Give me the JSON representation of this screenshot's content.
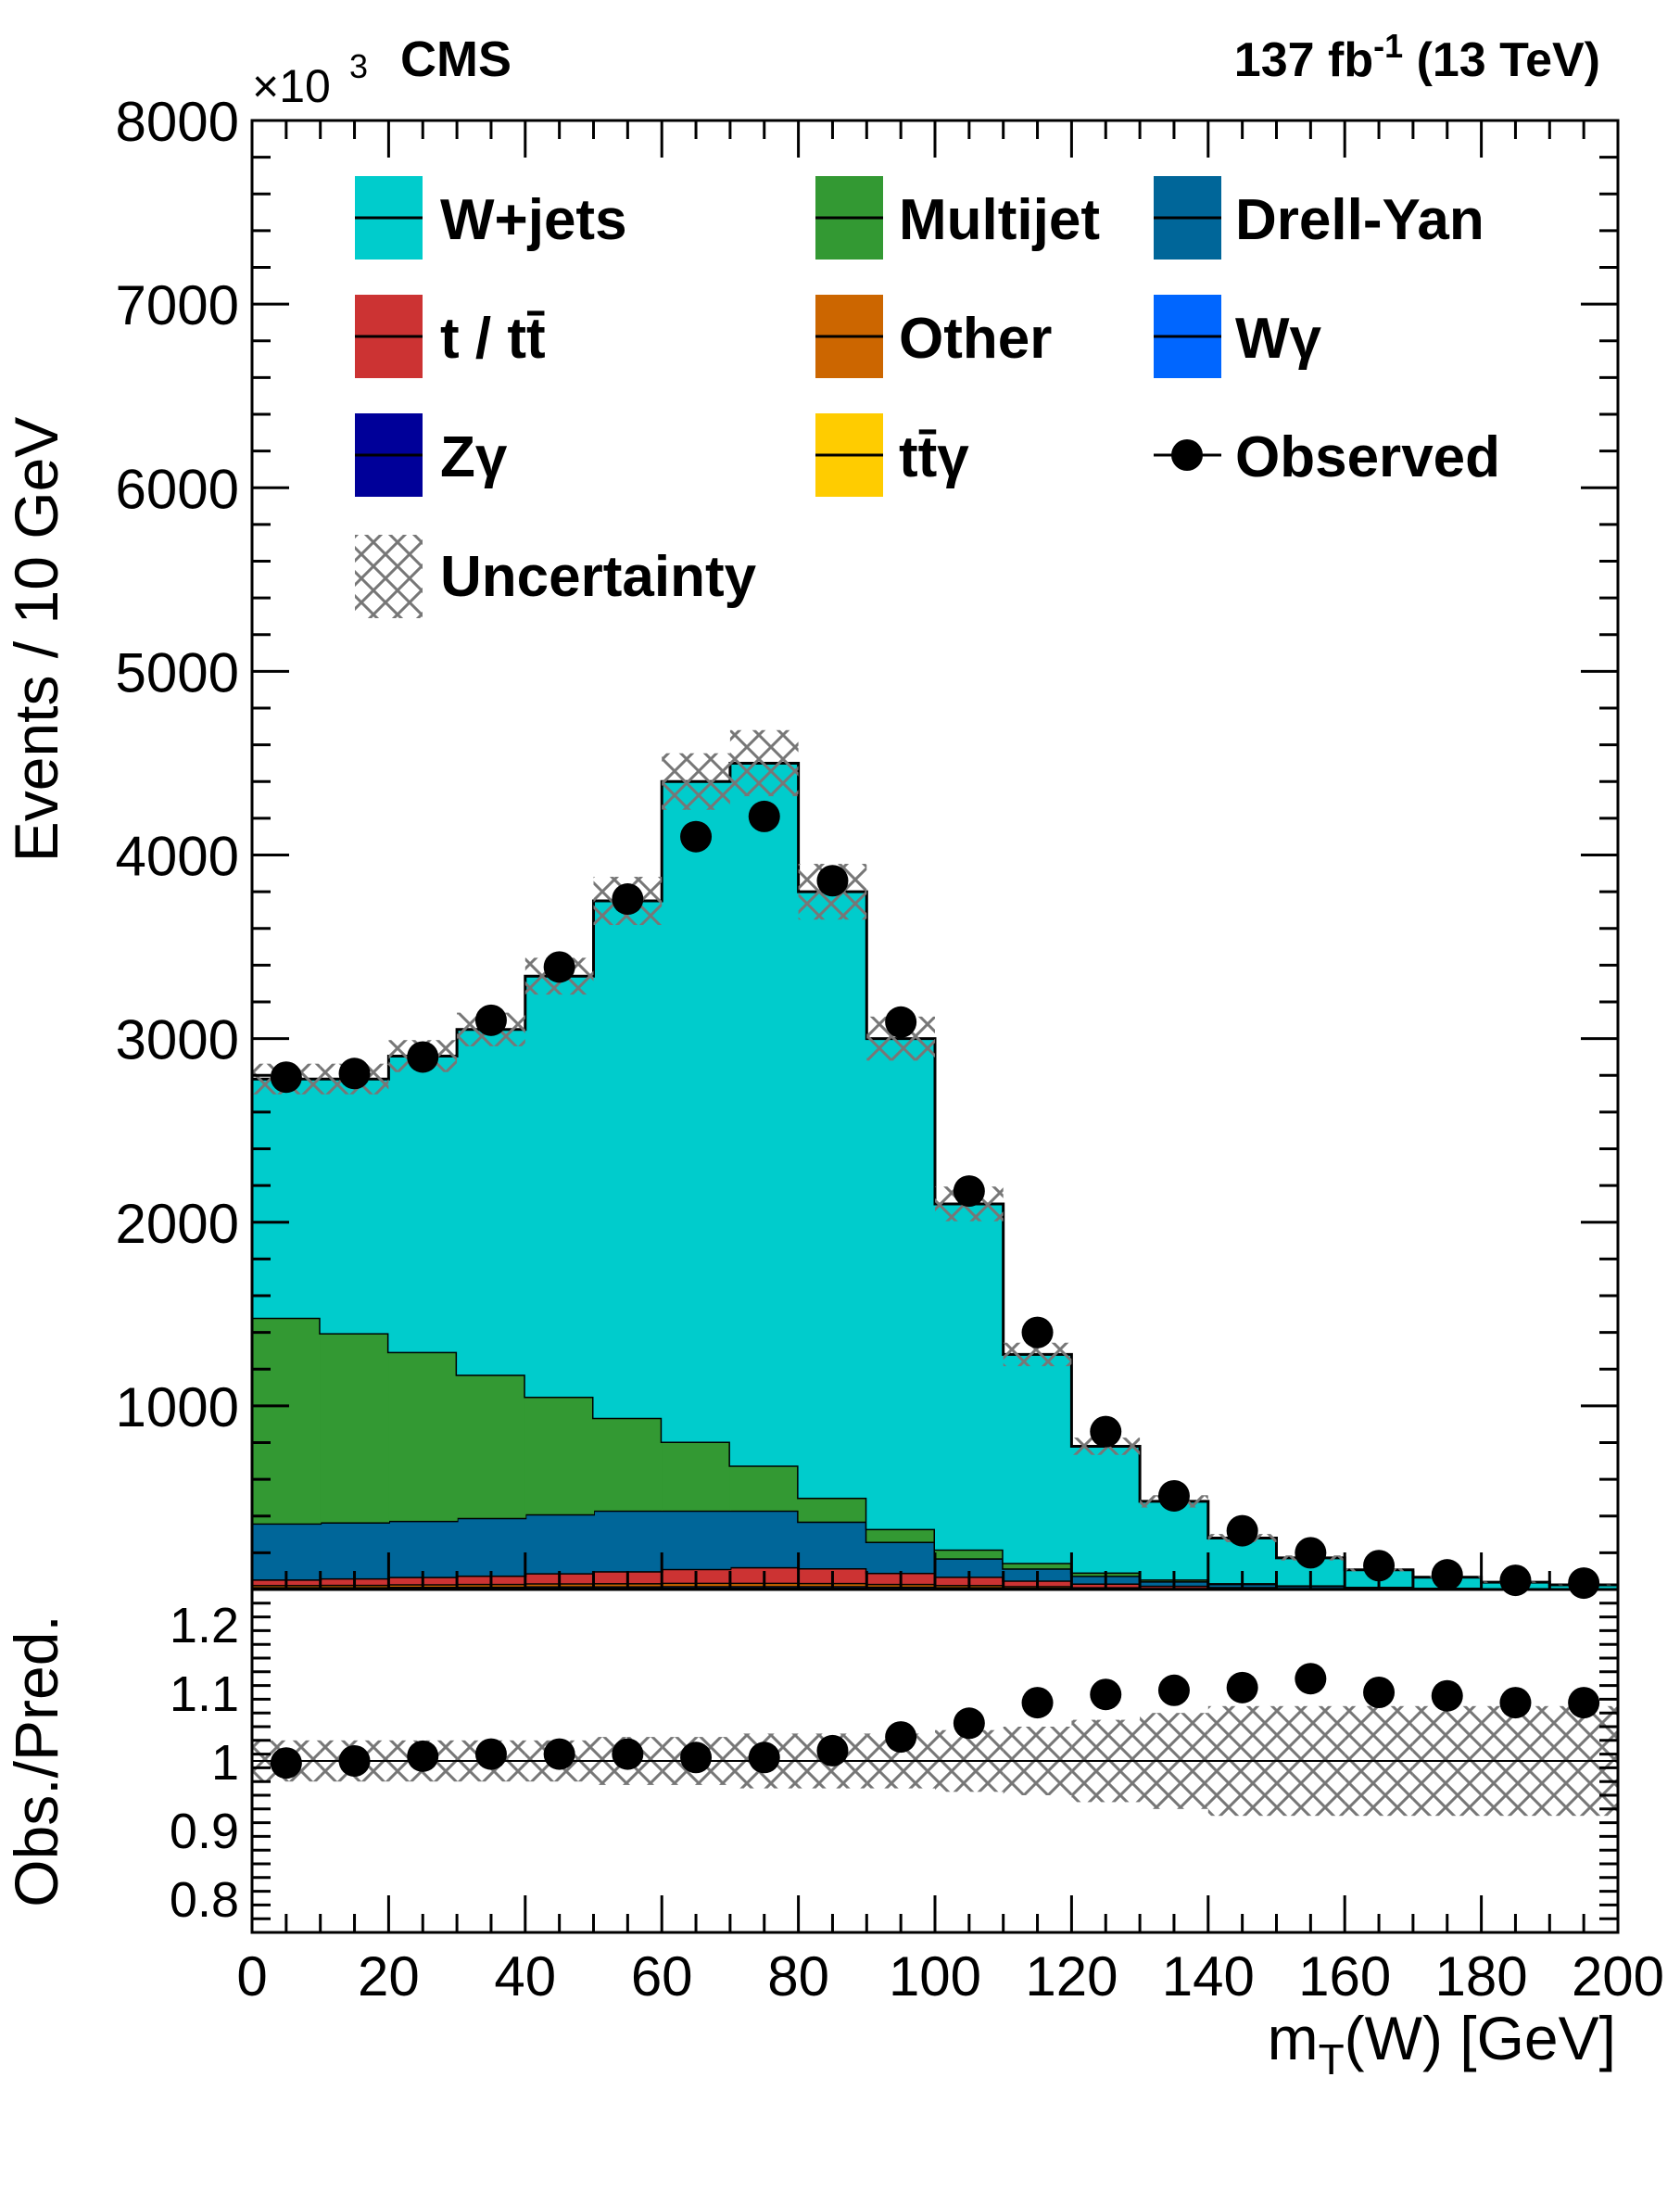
{
  "header": {
    "experiment": "CMS",
    "lumi_prefix": "137 fb",
    "lumi_sup": "-1",
    "lumi_suffix": "(13 TeV)",
    "multiplier_base": "×10",
    "multiplier_exp": "3"
  },
  "axes": {
    "ylabel_top": "Events / 10 GeV",
    "ylabel_bottom": "Obs./Pred.",
    "xlabel_main": "m",
    "xlabel_sub": "T",
    "xlabel_rest": "(W) [GeV]"
  },
  "legend": {
    "wjets": "W+jets",
    "multijet": "Multijet",
    "drellyan": "Drell-Yan",
    "top": "t / tt̄",
    "other": "Other",
    "wgamma": "Wγ",
    "zgamma": "Zγ",
    "ttgamma": "tt̄γ",
    "observed": "Observed",
    "uncertainty": "Uncertainty"
  },
  "colors": {
    "wjets": "#00cccc",
    "multijet": "#339933",
    "drellyan": "#006699",
    "top": "#cc3333",
    "other": "#cc6600",
    "wgamma": "#0066ff",
    "zgamma": "#000099",
    "ttgamma": "#ffcc00",
    "observed": "#000000",
    "uncertainty": "#777777"
  },
  "chart_data": [
    {
      "type": "bar",
      "subtype": "stacked-histogram",
      "x_edges": [
        0,
        10,
        20,
        30,
        40,
        50,
        60,
        70,
        80,
        90,
        100,
        110,
        120,
        130,
        140,
        150,
        160,
        170,
        180,
        190,
        200
      ],
      "xlim": [
        0,
        200
      ],
      "ylim": [
        0,
        8000
      ],
      "y_multiplier": "×10^3",
      "yticks": [
        1000,
        2000,
        3000,
        4000,
        5000,
        6000,
        7000,
        8000
      ],
      "xticks": [
        0,
        20,
        40,
        60,
        80,
        100,
        120,
        140,
        160,
        180,
        200
      ],
      "series": [
        {
          "key": "ttgamma",
          "name": "tt̄γ",
          "values": [
            3,
            3,
            4,
            4,
            5,
            5,
            5,
            5,
            5,
            4,
            3,
            2,
            1,
            1,
            0,
            0,
            0,
            0,
            0,
            0
          ]
        },
        {
          "key": "zgamma",
          "name": "Zγ",
          "values": [
            5,
            5,
            5,
            6,
            6,
            6,
            6,
            6,
            6,
            5,
            4,
            3,
            2,
            1,
            1,
            0,
            0,
            0,
            0,
            0
          ]
        },
        {
          "key": "wgamma",
          "name": "Wγ",
          "values": [
            5,
            5,
            6,
            6,
            7,
            7,
            8,
            8,
            8,
            7,
            6,
            5,
            4,
            3,
            2,
            2,
            1,
            1,
            0,
            0
          ]
        },
        {
          "key": "other",
          "name": "Other",
          "values": [
            12,
            13,
            14,
            15,
            16,
            17,
            18,
            18,
            17,
            15,
            12,
            9,
            6,
            4,
            3,
            2,
            2,
            1,
            1,
            1
          ]
        },
        {
          "key": "top",
          "name": "t / tt̄",
          "values": [
            30,
            35,
            40,
            45,
            55,
            65,
            75,
            85,
            80,
            60,
            45,
            30,
            20,
            12,
            8,
            5,
            3,
            2,
            1,
            1
          ]
        },
        {
          "key": "drellyan",
          "name": "Drell-Yan",
          "values": [
            305,
            305,
            305,
            314,
            321,
            330,
            318,
            308,
            254,
            169,
            100,
            66,
            42,
            24,
            16,
            11,
            7,
            4,
            3,
            2
          ]
        },
        {
          "key": "multijet",
          "name": "Multijet",
          "values": [
            1120,
            1030,
            920,
            780,
            640,
            505,
            375,
            245,
            130,
            70,
            48,
            30,
            18,
            10,
            5,
            3,
            2,
            2,
            1,
            1
          ]
        },
        {
          "key": "wjets",
          "name": "W+jets",
          "values": [
            1300,
            1384,
            1611,
            1880,
            2290,
            2815,
            3595,
            3825,
            3300,
            2670,
            1882,
            1135,
            687,
            425,
            245,
            149,
            92,
            57,
            34,
            20
          ]
        }
      ],
      "observed": {
        "name": "Observed",
        "values": [
          2790,
          2810,
          2900,
          3100,
          3390,
          3760,
          4100,
          4210,
          3860,
          3090,
          2170,
          1400,
          860,
          510,
          320,
          200,
          130,
          80,
          50,
          35
        ]
      },
      "uncertainty_frac": [
        0.03,
        0.03,
        0.03,
        0.03,
        0.03,
        0.035,
        0.035,
        0.04,
        0.04,
        0.04,
        0.045,
        0.05,
        0.06,
        0.07,
        0.08,
        0.08,
        0.08,
        0.08,
        0.08,
        0.08
      ]
    },
    {
      "type": "scatter",
      "subtype": "ratio",
      "x": [
        5,
        15,
        25,
        35,
        45,
        55,
        65,
        75,
        85,
        95,
        105,
        115,
        125,
        135,
        145,
        155,
        165,
        175,
        185,
        195
      ],
      "values": [
        0.997,
        1.0,
        1.007,
        1.01,
        1.01,
        1.01,
        1.005,
        1.005,
        1.015,
        1.035,
        1.055,
        1.085,
        1.097,
        1.103,
        1.107,
        1.12,
        1.1,
        1.095,
        1.085,
        1.085
      ],
      "uncertainty_frac": [
        0.03,
        0.03,
        0.03,
        0.03,
        0.03,
        0.035,
        0.035,
        0.04,
        0.04,
        0.04,
        0.045,
        0.05,
        0.06,
        0.07,
        0.08,
        0.08,
        0.08,
        0.08,
        0.08,
        0.08
      ],
      "ylim": [
        0.75,
        1.25
      ],
      "yticks_labeled": [
        0.8,
        0.9,
        1,
        1.1,
        1.2
      ],
      "reference_line": 1
    }
  ]
}
